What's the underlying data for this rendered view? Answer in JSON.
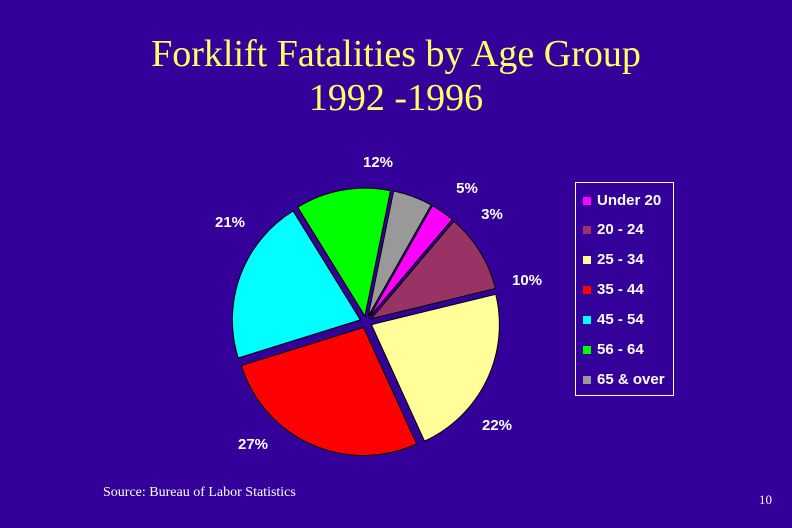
{
  "slide": {
    "title_line1": "Forklift Fatalities by Age Group",
    "title_line2": "1992 -1996",
    "source": "Source: Bureau of Labor Statistics",
    "page_number": "10"
  },
  "colors": {
    "background": "#330099",
    "title_text": "#ffff66",
    "label_text": "#ffffff"
  },
  "chart_data": {
    "type": "pie",
    "title": "Forklift Fatalities by Age Group 1992 -1996",
    "legend_position": "right",
    "slices": [
      {
        "label": "Under 20",
        "value": 3,
        "data_label": "3%",
        "color": "#ff00ff"
      },
      {
        "label": "20 - 24",
        "value": 10,
        "data_label": "10%",
        "color": "#993366"
      },
      {
        "label": "25 - 34",
        "value": 22,
        "data_label": "22%",
        "color": "#ffff99"
      },
      {
        "label": "35 - 44",
        "value": 27,
        "data_label": "27%",
        "color": "#ff0000"
      },
      {
        "label": "45 - 54",
        "value": 21,
        "data_label": "21%",
        "color": "#00ffff"
      },
      {
        "label": "56 - 64",
        "value": 12,
        "data_label": "12%",
        "color": "#00ff00"
      },
      {
        "label": "65 & over",
        "value": 5,
        "data_label": "5%",
        "color": "#999999"
      }
    ]
  }
}
